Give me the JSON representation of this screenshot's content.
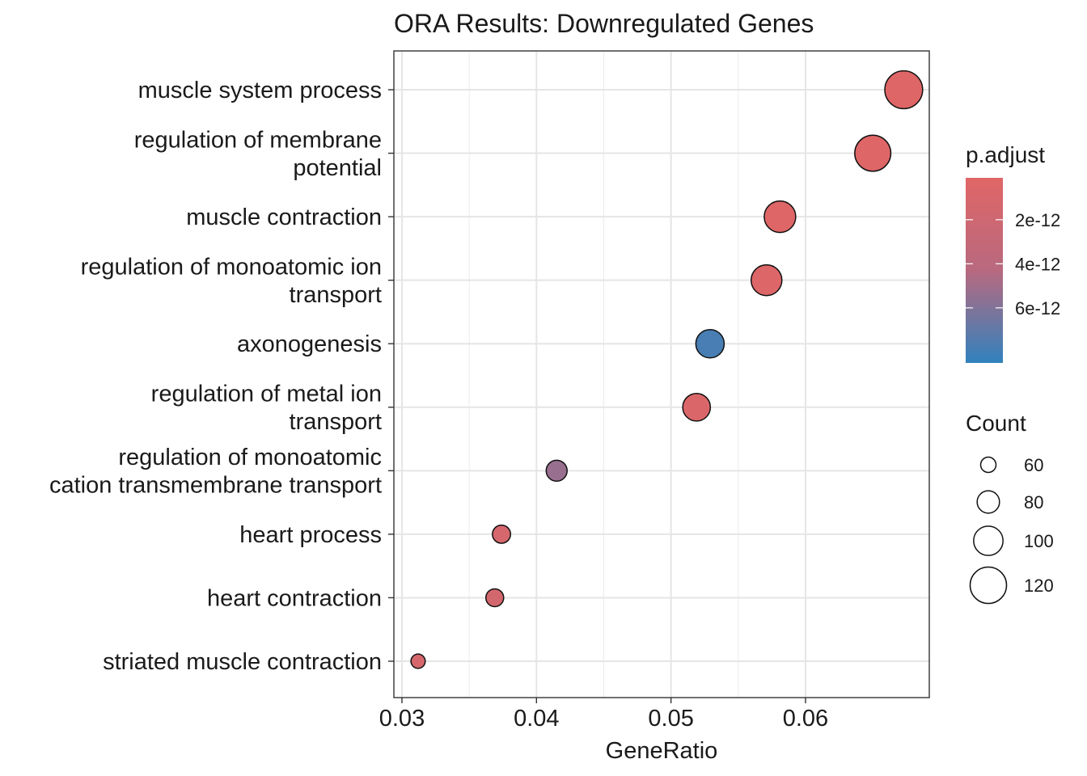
{
  "chart_data": {
    "type": "scatter",
    "title": "ORA Results: Downregulated Genes",
    "xlabel": "GeneRatio",
    "ylabel": "",
    "xlim": [
      0.0294,
      0.0692
    ],
    "x_ticks": [
      0.03,
      0.04,
      0.05,
      0.06
    ],
    "x_tick_labels": [
      "0.03",
      "0.04",
      "0.05",
      "0.06"
    ],
    "grid": true,
    "legend_position": "right",
    "categories": [
      [
        "muscle system process"
      ],
      [
        "regulation of membrane",
        "potential"
      ],
      [
        "muscle contraction"
      ],
      [
        "regulation of monoatomic ion",
        "transport"
      ],
      [
        "axonogenesis"
      ],
      [
        "regulation of metal ion",
        "transport"
      ],
      [
        "regulation of monoatomic",
        "cation transmembrane transport"
      ],
      [
        "heart process"
      ],
      [
        "heart contraction"
      ],
      [
        "striated muscle contraction"
      ]
    ],
    "points": [
      {
        "gene_ratio": 0.0673,
        "count": 124,
        "p_adjust": 2e-13
      },
      {
        "gene_ratio": 0.065,
        "count": 119,
        "p_adjust": 3e-13
      },
      {
        "gene_ratio": 0.0581,
        "count": 106,
        "p_adjust": 3e-13
      },
      {
        "gene_ratio": 0.0571,
        "count": 104,
        "p_adjust": 5e-13
      },
      {
        "gene_ratio": 0.0529,
        "count": 97,
        "p_adjust": 7.8e-12
      },
      {
        "gene_ratio": 0.0519,
        "count": 95,
        "p_adjust": 6e-13
      },
      {
        "gene_ratio": 0.0415,
        "count": 76,
        "p_adjust": 5.3e-12
      },
      {
        "gene_ratio": 0.0374,
        "count": 68,
        "p_adjust": 1.3e-12
      },
      {
        "gene_ratio": 0.0369,
        "count": 67,
        "p_adjust": 1.5e-12
      },
      {
        "gene_ratio": 0.0312,
        "count": 57,
        "p_adjust": 1.3e-12
      }
    ],
    "color_legend": {
      "title": "p.adjust",
      "range": [
        1e-13,
        8.5e-12
      ],
      "low_color": "#e06666",
      "high_color": "#3182bd",
      "ticks": [
        2e-12,
        4e-12,
        6e-12
      ],
      "tick_labels": [
        "2e-12",
        "4e-12",
        "6e-12"
      ]
    },
    "size_legend": {
      "title": "Count",
      "values": [
        60,
        80,
        100,
        120
      ],
      "labels": [
        "60",
        "80",
        "100",
        "120"
      ]
    }
  }
}
